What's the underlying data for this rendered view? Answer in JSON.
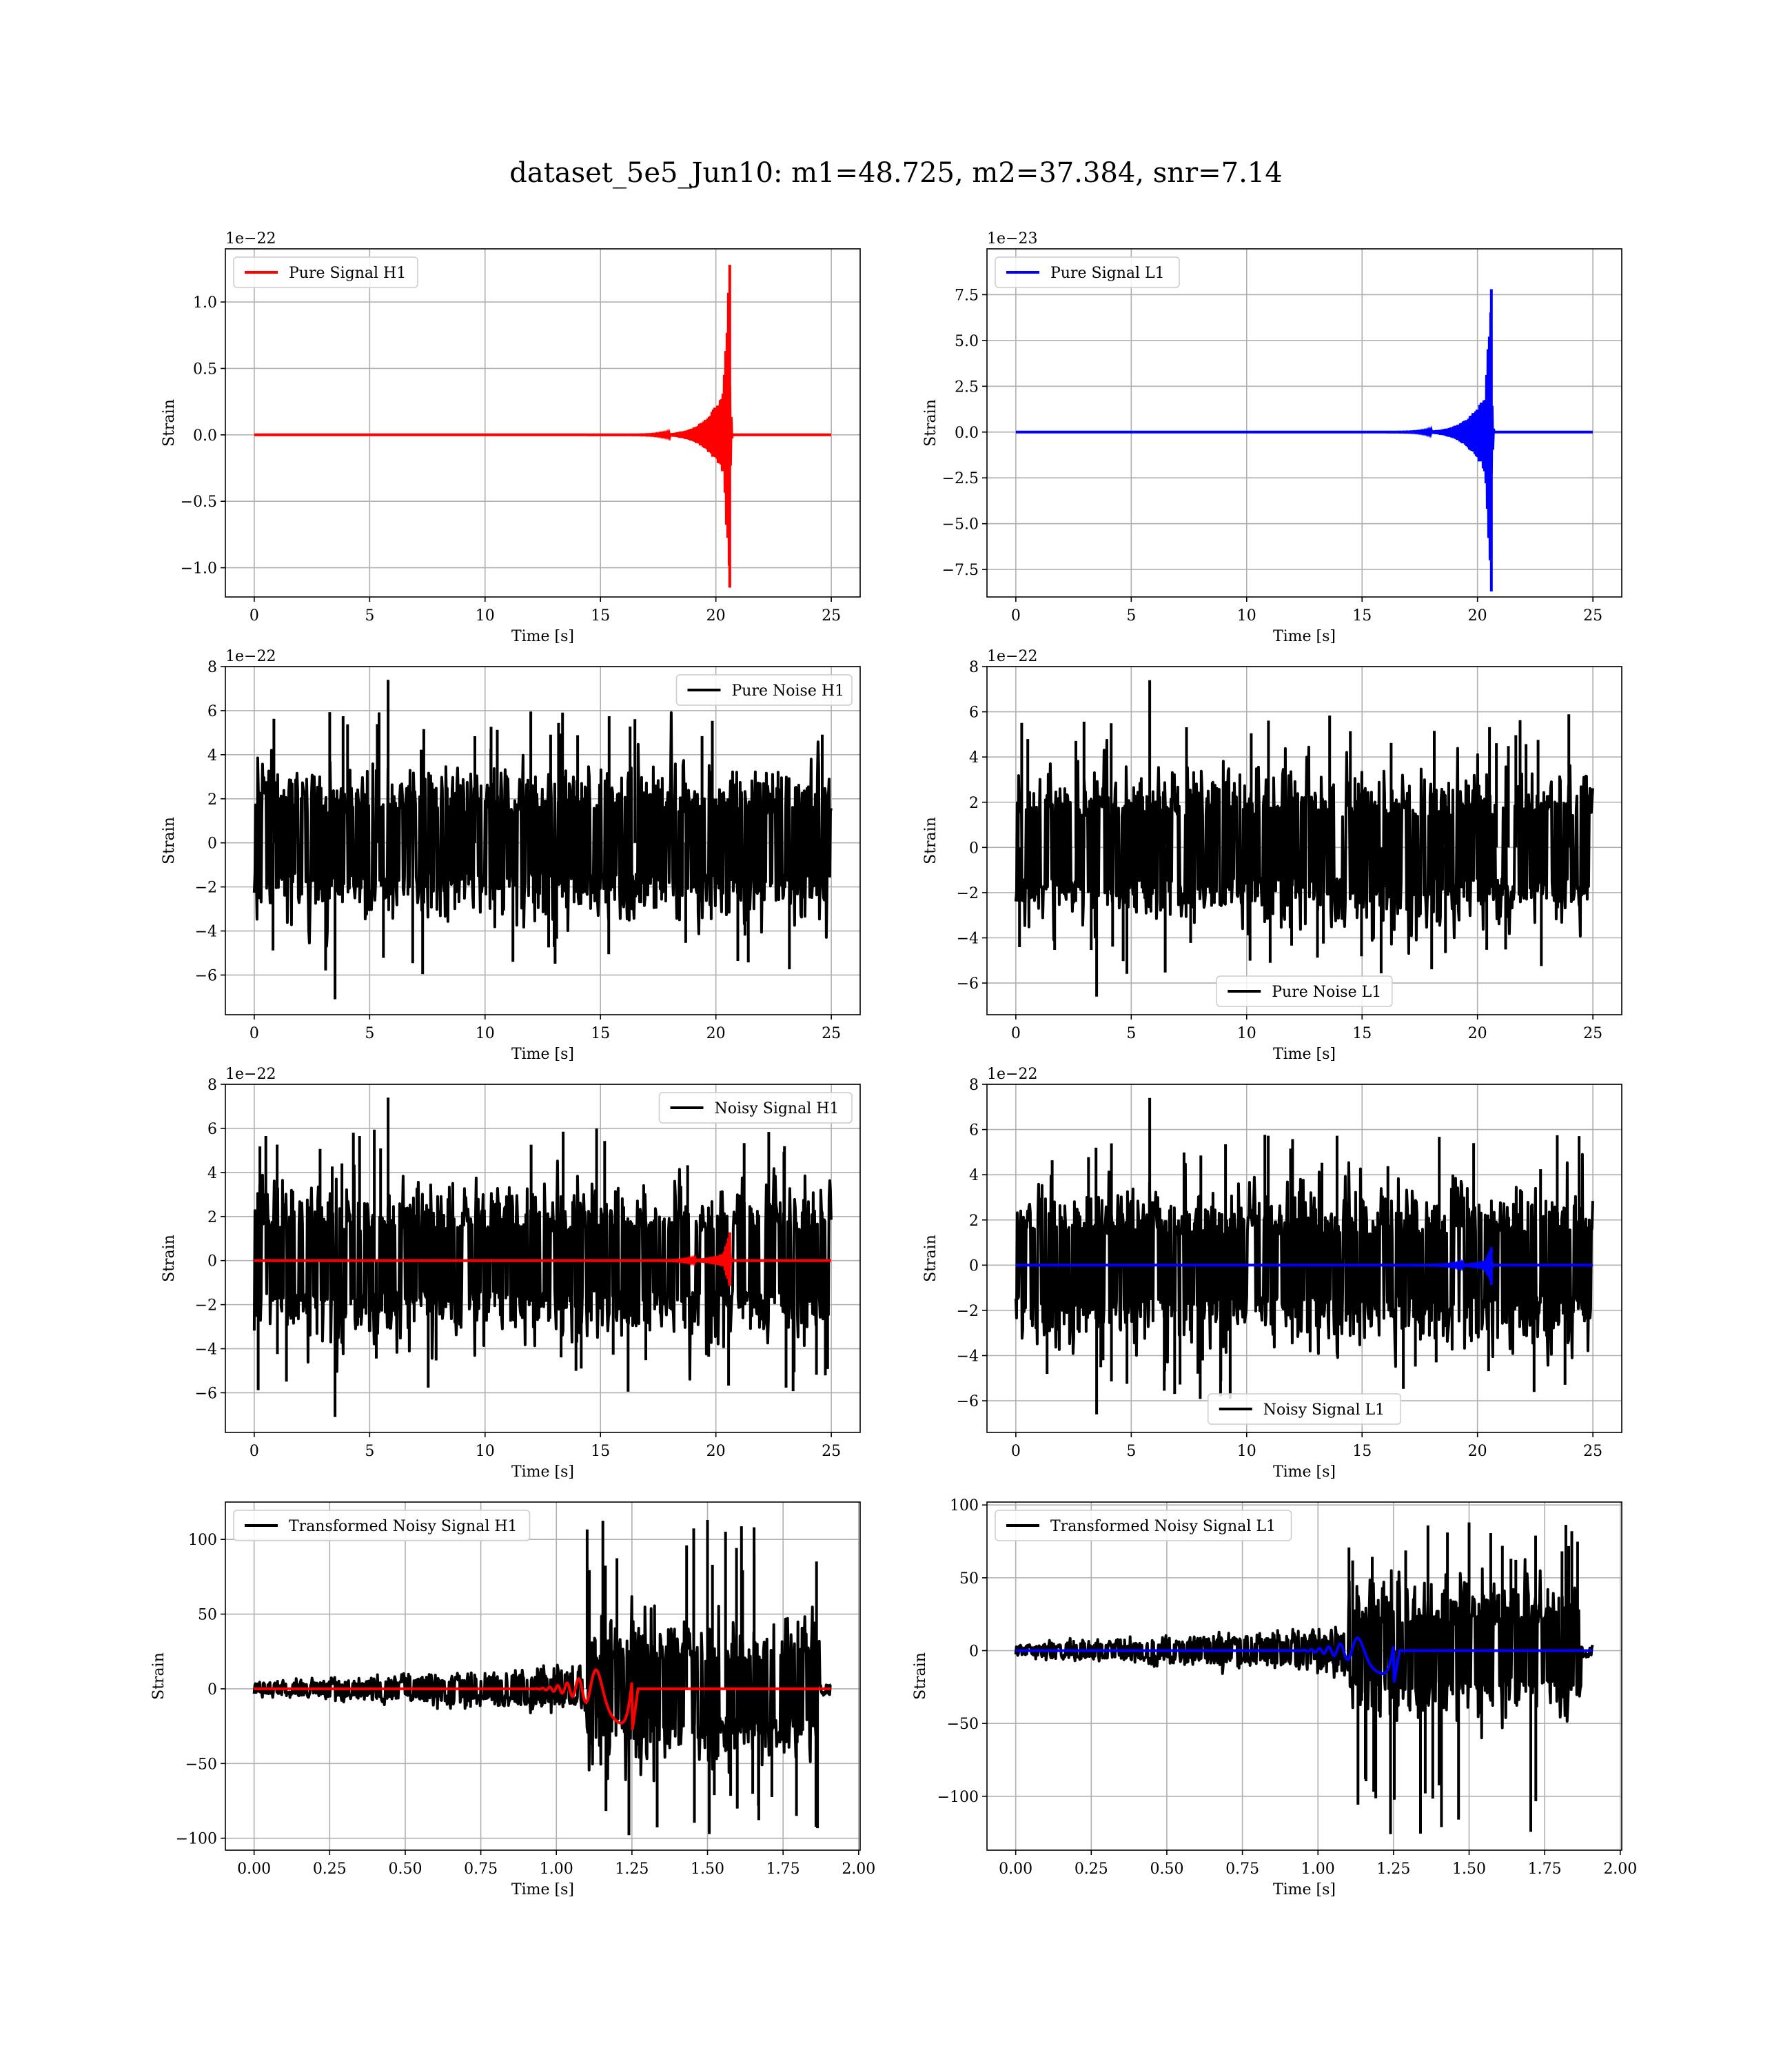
{
  "figure": {
    "title": "dataset_5e5_Jun10: m1=48.725, m2=37.384, snr=7.14"
  },
  "colors": {
    "h1_signal": "#ff0000",
    "l1_signal": "#0000ff",
    "noise": "#000000",
    "grid": "#b0b0b0"
  },
  "chart_data": [
    {
      "id": "pure-signal-h1",
      "type": "line",
      "xlabel": "Time [s]",
      "ylabel": "Strain",
      "offset_text": "1e−22",
      "xlim": [
        -1.25,
        26.25
      ],
      "ylim": [
        -1.22,
        1.4
      ],
      "xticks": [
        0,
        5,
        10,
        15,
        20,
        25
      ],
      "xtick_labels": [
        "0",
        "5",
        "10",
        "15",
        "20",
        "25"
      ],
      "yticks": [
        -1.0,
        -0.5,
        0.0,
        0.5,
        1.0
      ],
      "ytick_labels": [
        "−1.0",
        "−0.5",
        "0.0",
        "0.5",
        "1.0"
      ],
      "grid": true,
      "legend_position": "upper left",
      "series": [
        {
          "name": "Pure Signal H1",
          "color": "#ff0000",
          "kind": "chirp",
          "x_range": [
            0,
            25
          ],
          "merger": 20.6,
          "peak_pos": 1.28,
          "peak_neg": -1.15,
          "ringdown": 0.1
        }
      ]
    },
    {
      "id": "pure-signal-l1",
      "type": "line",
      "xlabel": "Time [s]",
      "ylabel": "Strain",
      "offset_text": "1e−23",
      "xlim": [
        -1.25,
        26.25
      ],
      "ylim": [
        -9.0,
        10.0
      ],
      "xticks": [
        0,
        5,
        10,
        15,
        20,
        25
      ],
      "xtick_labels": [
        "0",
        "5",
        "10",
        "15",
        "20",
        "25"
      ],
      "yticks": [
        -7.5,
        -5.0,
        -2.5,
        0.0,
        2.5,
        5.0,
        7.5
      ],
      "ytick_labels": [
        "−7.5",
        "−5.0",
        "−2.5",
        "0.0",
        "2.5",
        "5.0",
        "7.5"
      ],
      "grid": true,
      "legend_position": "upper left",
      "series": [
        {
          "name": "Pure Signal L1",
          "color": "#0000ff",
          "kind": "chirp",
          "x_range": [
            0,
            25
          ],
          "merger": 20.6,
          "peak_pos": 7.8,
          "peak_neg": -8.7,
          "ringdown": 0.1
        }
      ]
    },
    {
      "id": "pure-noise-h1",
      "type": "line",
      "xlabel": "Time [s]",
      "ylabel": "Strain",
      "offset_text": "1e−22",
      "xlim": [
        -1.25,
        26.25
      ],
      "ylim": [
        -7.8,
        8.0
      ],
      "xticks": [
        0,
        5,
        10,
        15,
        20,
        25
      ],
      "xtick_labels": [
        "0",
        "5",
        "10",
        "15",
        "20",
        "25"
      ],
      "yticks": [
        -6,
        -4,
        -2,
        0,
        2,
        4,
        6,
        8
      ],
      "ytick_labels": [
        "−6",
        "−4",
        "−2",
        "0",
        "2",
        "4",
        "6",
        "8"
      ],
      "grid": true,
      "legend_position": "upper right",
      "series": [
        {
          "name": "Pure Noise H1",
          "color": "#000000",
          "kind": "noise",
          "x_range": [
            0,
            25
          ],
          "sigma": 1.4,
          "extreme": [
            7.4,
            -7.1
          ]
        }
      ]
    },
    {
      "id": "pure-noise-l1",
      "type": "line",
      "xlabel": "Time [s]",
      "ylabel": "Strain",
      "offset_text": "1e−22",
      "xlim": [
        -1.25,
        26.25
      ],
      "ylim": [
        -7.4,
        8.0
      ],
      "xticks": [
        0,
        5,
        10,
        15,
        20,
        25
      ],
      "xtick_labels": [
        "0",
        "5",
        "10",
        "15",
        "20",
        "25"
      ],
      "yticks": [
        -6,
        -4,
        -2,
        0,
        2,
        4,
        6,
        8
      ],
      "ytick_labels": [
        "−6",
        "−4",
        "−2",
        "0",
        "2",
        "4",
        "6",
        "8"
      ],
      "grid": true,
      "legend_position": "lower center",
      "series": [
        {
          "name": "Pure Noise L1",
          "color": "#000000",
          "kind": "noise",
          "x_range": [
            0,
            25
          ],
          "sigma": 1.4,
          "extreme": [
            7.4,
            -6.6
          ]
        }
      ]
    },
    {
      "id": "noisy-signal-h1",
      "type": "line",
      "xlabel": "Time [s]",
      "ylabel": "Strain",
      "offset_text": "1e−22",
      "xlim": [
        -1.25,
        26.25
      ],
      "ylim": [
        -7.8,
        8.0
      ],
      "xticks": [
        0,
        5,
        10,
        15,
        20,
        25
      ],
      "xtick_labels": [
        "0",
        "5",
        "10",
        "15",
        "20",
        "25"
      ],
      "yticks": [
        -6,
        -4,
        -2,
        0,
        2,
        4,
        6,
        8
      ],
      "ytick_labels": [
        "−6",
        "−4",
        "−2",
        "0",
        "2",
        "4",
        "6",
        "8"
      ],
      "grid": true,
      "legend_position": "upper right",
      "series": [
        {
          "name": "Noisy Signal H1",
          "color": "#000000",
          "kind": "noise",
          "x_range": [
            0,
            25
          ],
          "sigma": 1.4,
          "extreme": [
            7.4,
            -7.1
          ]
        },
        {
          "color": "#ff0000",
          "kind": "chirp",
          "x_range": [
            0,
            25
          ],
          "merger": 20.6,
          "peak_pos": 1.28,
          "peak_neg": -1.15,
          "ringdown": 0.1
        }
      ]
    },
    {
      "id": "noisy-signal-l1",
      "type": "line",
      "xlabel": "Time [s]",
      "ylabel": "Strain",
      "offset_text": "1e−22",
      "xlim": [
        -1.25,
        26.25
      ],
      "ylim": [
        -7.4,
        8.0
      ],
      "xticks": [
        0,
        5,
        10,
        15,
        20,
        25
      ],
      "xtick_labels": [
        "0",
        "5",
        "10",
        "15",
        "20",
        "25"
      ],
      "yticks": [
        -6,
        -4,
        -2,
        0,
        2,
        4,
        6,
        8
      ],
      "ytick_labels": [
        "−6",
        "−4",
        "−2",
        "0",
        "2",
        "4",
        "6",
        "8"
      ],
      "grid": true,
      "legend_position": "lower center",
      "series": [
        {
          "name": "Noisy Signal L1",
          "color": "#000000",
          "kind": "noise",
          "x_range": [
            0,
            25
          ],
          "sigma": 1.4,
          "extreme": [
            7.4,
            -6.6
          ]
        },
        {
          "color": "#0000ff",
          "kind": "chirp",
          "x_range": [
            0,
            25
          ],
          "merger": 20.6,
          "peak_pos": 0.8,
          "peak_neg": -0.87,
          "ringdown": 0.1
        }
      ]
    },
    {
      "id": "transformed-noisy-signal-h1",
      "type": "line",
      "xlabel": "Time [s]",
      "ylabel": "Strain",
      "offset_text": "",
      "xlim": [
        -0.095,
        2.005
      ],
      "ylim": [
        -108,
        125
      ],
      "xticks": [
        0.0,
        0.25,
        0.5,
        0.75,
        1.0,
        1.25,
        1.5,
        1.75,
        2.0
      ],
      "xtick_labels": [
        "0.00",
        "0.25",
        "0.50",
        "0.75",
        "1.00",
        "1.25",
        "1.50",
        "1.75",
        "2.00"
      ],
      "yticks": [
        -100,
        -50,
        0,
        50,
        100
      ],
      "ytick_labels": [
        "−100",
        "−50",
        "0",
        "50",
        "100"
      ],
      "grid": true,
      "legend_position": "upper left",
      "series": [
        {
          "name": "Transformed Noisy Signal H1",
          "color": "#000000",
          "kind": "tnoise",
          "x_range": [
            0,
            1.91
          ],
          "edge": 1.87,
          "jump": 1.1,
          "extreme": [
            113,
            -98
          ]
        },
        {
          "color": "#ff0000",
          "kind": "tchirp",
          "x_range": [
            0,
            1.91
          ],
          "merger": 1.25,
          "peak_pos": 32,
          "peak_neg": -30
        }
      ]
    },
    {
      "id": "transformed-noisy-signal-l1",
      "type": "line",
      "xlabel": "Time [s]",
      "ylabel": "Strain",
      "offset_text": "",
      "xlim": [
        -0.095,
        2.005
      ],
      "ylim": [
        -137,
        102
      ],
      "xticks": [
        0.0,
        0.25,
        0.5,
        0.75,
        1.0,
        1.25,
        1.5,
        1.75,
        2.0
      ],
      "xtick_labels": [
        "0.00",
        "0.25",
        "0.50",
        "0.75",
        "1.00",
        "1.25",
        "1.50",
        "1.75",
        "2.00"
      ],
      "yticks": [
        -100,
        -50,
        0,
        50,
        100
      ],
      "ytick_labels": [
        "−100",
        "−50",
        "0",
        "50",
        "100"
      ],
      "grid": true,
      "legend_position": "upper left",
      "series": [
        {
          "name": "Transformed Noisy Signal L1",
          "color": "#000000",
          "kind": "tnoise",
          "x_range": [
            0,
            1.91
          ],
          "edge": 1.87,
          "jump": 1.1,
          "extreme": [
            88,
            -126
          ]
        },
        {
          "color": "#0000ff",
          "kind": "tchirp",
          "x_range": [
            0,
            1.91
          ],
          "merger": 1.25,
          "peak_pos": 22,
          "peak_neg": -24
        }
      ]
    }
  ]
}
